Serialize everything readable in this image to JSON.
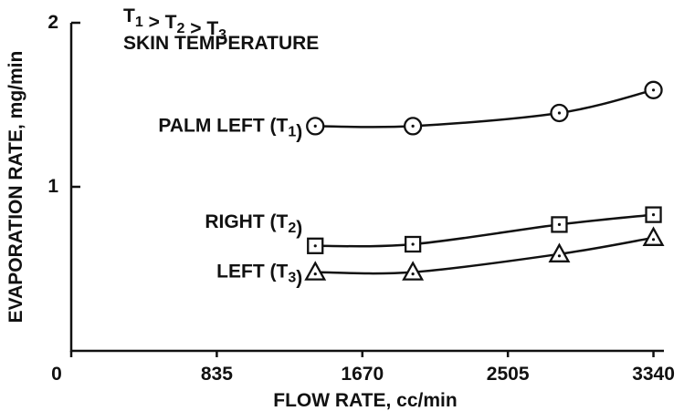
{
  "chart_data": {
    "type": "line",
    "annotations": [
      "T1 > T2 > T3",
      "SKIN TEMPERATURE"
    ],
    "x_label": "FLOW RATE, cc/min",
    "y_label": "EVAPORATION RATE, mg/min",
    "x": [
      1400,
      1960,
      2800,
      3340
    ],
    "series": [
      {
        "name": "PALM LEFT (T1)",
        "color": "#111111",
        "marker": "circle",
        "values": [
          1.37,
          1.37,
          1.45,
          1.59
        ]
      },
      {
        "name": "RIGHT (T2)",
        "color": "#111111",
        "marker": "square",
        "values": [
          0.64,
          0.65,
          0.77,
          0.83
        ]
      },
      {
        "name": "LEFT (T3)",
        "color": "#111111",
        "marker": "triangle",
        "values": [
          0.48,
          0.48,
          0.59,
          0.69
        ]
      }
    ],
    "xlim": [
      0,
      3400
    ],
    "xticks": [
      0,
      835,
      1670,
      2505,
      3340
    ],
    "ylim": [
      0,
      2
    ],
    "yticks": [
      1,
      2
    ]
  }
}
